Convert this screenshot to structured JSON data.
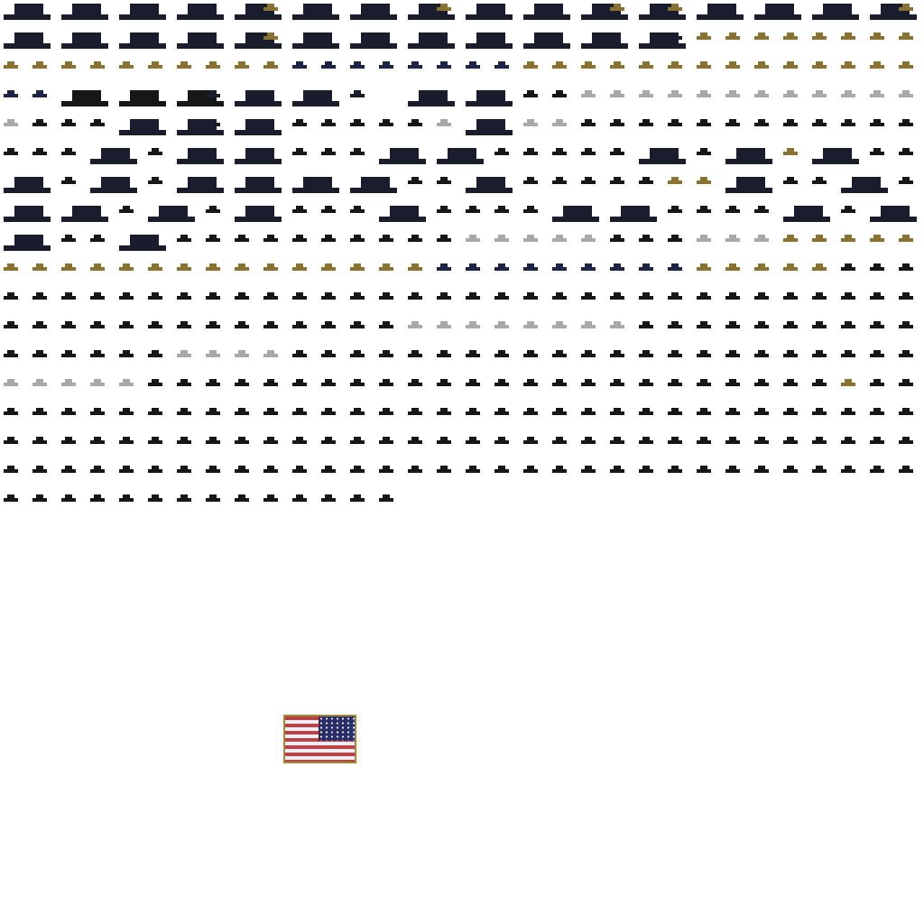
{
  "atlas": {
    "description_label": "",
    "palette": {
      "navy": "#1a1e2c",
      "black": "#171717",
      "gold": "#8a7332",
      "silver": "#a9a9a9",
      "blue": "#1c2448"
    }
  },
  "flag": {
    "icon": "us-flag-icon",
    "colors": {
      "red": "#b8424a",
      "white": "#f1eeee",
      "blue": "#2a2d6b",
      "border": "#a08a3a"
    }
  }
}
